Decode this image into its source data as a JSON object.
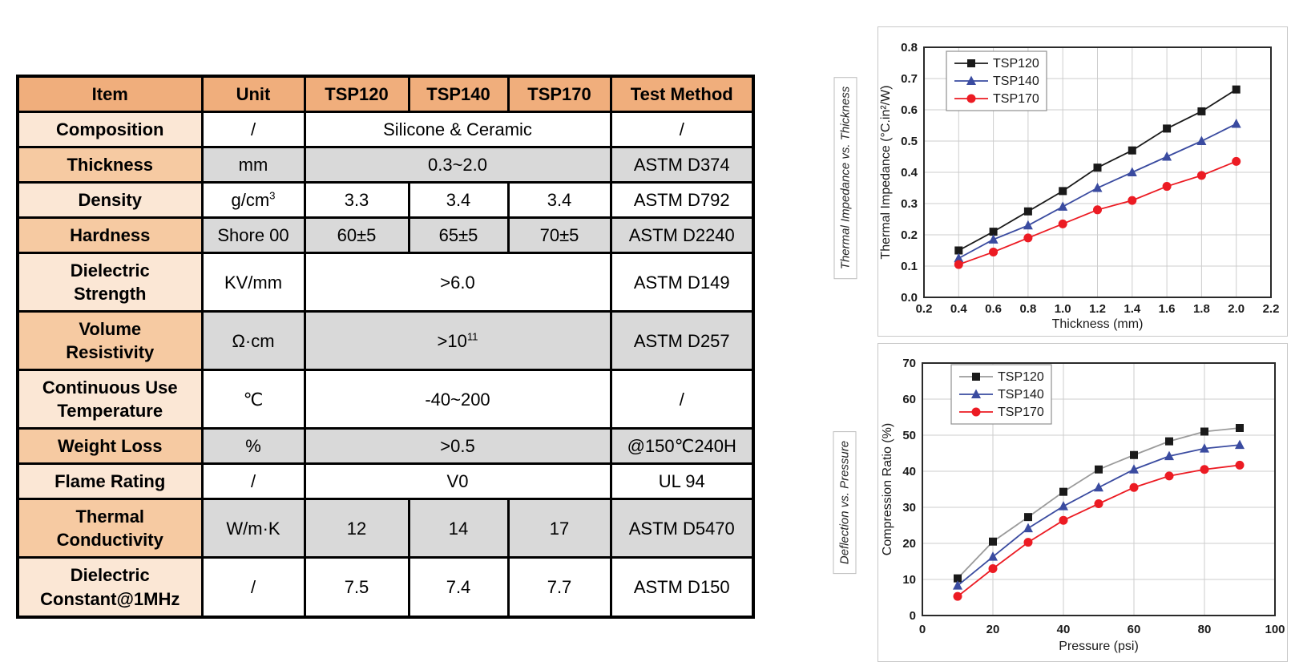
{
  "table": {
    "headers": [
      "Item",
      "Unit",
      "TSP120",
      "TSP140",
      "TSP170",
      "Test Method"
    ],
    "rows": [
      {
        "item": "Composition",
        "unit": "/",
        "value": "Silicone & Ceramic",
        "method": "/"
      },
      {
        "item": "Thickness",
        "unit": "mm",
        "value": "0.3~2.0",
        "method": "ASTM D374"
      },
      {
        "item": "Density",
        "unit": "g/cm",
        "unit_sup": "3",
        "v1": "3.3",
        "v2": "3.4",
        "v3": "3.4",
        "method": "ASTM D792"
      },
      {
        "item": "Hardness",
        "unit": "Shore 00",
        "v1": "60±5",
        "v2": "65±5",
        "v3": "70±5",
        "method": "ASTM D2240"
      },
      {
        "item": "Dielectric",
        "item2": "Strength",
        "unit": "KV/mm",
        "value": ">6.0",
        "method": "ASTM D149"
      },
      {
        "item": "Volume",
        "item2": "Resistivity",
        "unit": "Ω·cm",
        "value": ">10",
        "value_sup": "11",
        "method": "ASTM D257"
      },
      {
        "item": "Continuous Use",
        "item2": "Temperature",
        "unit": "℃",
        "value": "-40~200",
        "method": "/"
      },
      {
        "item": "Weight Loss",
        "unit": "%",
        "value": ">0.5",
        "method": "@150℃240H"
      },
      {
        "item": "Flame Rating",
        "unit": "/",
        "value": "V0",
        "method": "UL 94"
      },
      {
        "item": "Thermal",
        "item2": "Conductivity",
        "unit": "W/m·K",
        "v1": "12",
        "v2": "14",
        "v3": "17",
        "method": "ASTM D5470"
      },
      {
        "item": "Dielectric",
        "item2": "Constant@1MHz",
        "unit": "/",
        "v1": "7.5",
        "v2": "7.4",
        "v3": "7.7",
        "method": "ASTM D150"
      }
    ],
    "colors": {
      "header": "#F0AE7C",
      "item_row_orange": "#F6CAA2",
      "item_row_peach": "#FBE7D5",
      "data_gray": "#D9D9D9",
      "data_white": "#FFFFFF",
      "border": "#000000"
    }
  },
  "chart_data": [
    {
      "type": "line",
      "side_label": "Thermal Impedance vs. Thickness",
      "xlabel": "Thickness (mm)",
      "ylabel": "Thermal Impedance (°C.in²/W)",
      "xlim": [
        0.2,
        2.2
      ],
      "ylim": [
        0.0,
        0.8
      ],
      "xticks": [
        0.2,
        0.4,
        0.6,
        0.8,
        1.0,
        1.2,
        1.4,
        1.6,
        1.8,
        2.0,
        2.2
      ],
      "xtick_labels": [
        "0.2",
        "0.4",
        "0.6",
        "0.8",
        "1.0",
        "1.2",
        "1.4",
        "1.6",
        "1.8",
        "2.0",
        "2.2"
      ],
      "yticks": [
        0.0,
        0.1,
        0.2,
        0.3,
        0.4,
        0.5,
        0.6,
        0.7,
        0.8
      ],
      "ytick_labels": [
        "0.0",
        "0.1",
        "0.2",
        "0.3",
        "0.4",
        "0.5",
        "0.6",
        "0.7",
        "0.8"
      ],
      "x": [
        0.4,
        0.6,
        0.8,
        1.0,
        1.2,
        1.4,
        1.6,
        1.8,
        2.0
      ],
      "series": [
        {
          "name": "TSP120",
          "marker": "square",
          "marker_color": "#1a1a1a",
          "line_color": "#1a1a1a",
          "values": [
            0.15,
            0.21,
            0.275,
            0.34,
            0.415,
            0.47,
            0.54,
            0.595,
            0.665
          ]
        },
        {
          "name": "TSP140",
          "marker": "triangle",
          "marker_color": "#3A4BA0",
          "line_color": "#3A4BA0",
          "values": [
            0.125,
            0.185,
            0.23,
            0.29,
            0.35,
            0.4,
            0.45,
            0.5,
            0.555
          ]
        },
        {
          "name": "TSP170",
          "marker": "circle",
          "marker_color": "#EC1B23",
          "line_color": "#EC1B23",
          "values": [
            0.105,
            0.145,
            0.19,
            0.235,
            0.28,
            0.31,
            0.355,
            0.39,
            0.435
          ]
        }
      ],
      "legend_position": "top-left",
      "grid": true
    },
    {
      "type": "line",
      "side_label": "Deflection vs. Pressure",
      "xlabel": "Pressure (psi)",
      "ylabel": "Compression Ratio (%)",
      "xlim": [
        0,
        100
      ],
      "ylim": [
        0,
        70
      ],
      "xticks": [
        0,
        20,
        40,
        60,
        80,
        100
      ],
      "xtick_labels": [
        "0",
        "20",
        "40",
        "60",
        "80",
        "100"
      ],
      "yticks": [
        0,
        10,
        20,
        30,
        40,
        50,
        60,
        70
      ],
      "ytick_labels": [
        "0",
        "10",
        "20",
        "30",
        "40",
        "50",
        "60",
        "70"
      ],
      "x": [
        10,
        20,
        30,
        40,
        50,
        60,
        70,
        80,
        90
      ],
      "series": [
        {
          "name": "TSP120",
          "marker": "square",
          "marker_color": "#1a1a1a",
          "line_color": "#9b9b9b",
          "values": [
            10.3,
            20.5,
            27.3,
            34.3,
            40.5,
            44.5,
            48.3,
            51.0,
            52.0
          ]
        },
        {
          "name": "TSP140",
          "marker": "triangle",
          "marker_color": "#3A4BA0",
          "line_color": "#3A4BA0",
          "values": [
            8.3,
            16.3,
            24.2,
            30.3,
            35.5,
            40.5,
            44.2,
            46.3,
            47.3
          ]
        },
        {
          "name": "TSP170",
          "marker": "circle",
          "marker_color": "#EC1B23",
          "line_color": "#EC1B23",
          "values": [
            5.3,
            13.0,
            20.3,
            26.4,
            31.0,
            35.5,
            38.7,
            40.5,
            41.7
          ]
        }
      ],
      "legend_position": "top-left",
      "grid": true
    }
  ]
}
